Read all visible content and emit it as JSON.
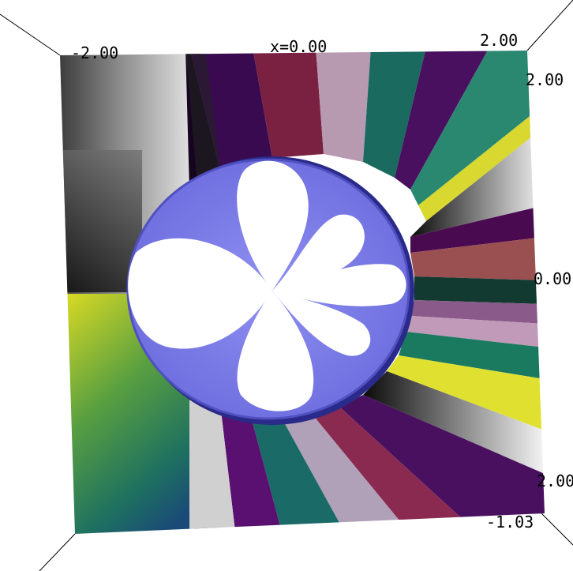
{
  "axis_labels": {
    "top_left": "-2.00",
    "top_center": "x=0.00",
    "top_right": "2.00",
    "right_top": "2.00",
    "right_middle": "0.00",
    "right_bottom": "2.00",
    "bottom_right": "-1.03"
  },
  "colors": {
    "background": "#ffffff",
    "sphere": "#8080ee",
    "sphere_shadow": "#3a3aa8",
    "lobes": "#ffffff",
    "frame_lines": "#000000"
  }
}
